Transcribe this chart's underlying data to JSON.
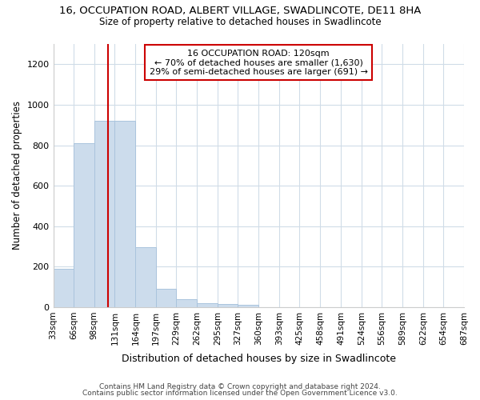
{
  "title": "16, OCCUPATION ROAD, ALBERT VILLAGE, SWADLINCOTE, DE11 8HA",
  "subtitle": "Size of property relative to detached houses in Swadlincote",
  "xlabel": "Distribution of detached houses by size in Swadlincote",
  "ylabel": "Number of detached properties",
  "bin_edges": [
    33,
    66,
    98,
    131,
    164,
    197,
    229,
    262,
    295,
    327,
    360,
    393,
    425,
    458,
    491,
    524,
    556,
    589,
    622,
    654,
    687
  ],
  "bar_heights": [
    190,
    810,
    920,
    920,
    295,
    90,
    38,
    20,
    15,
    10,
    0,
    0,
    0,
    0,
    0,
    0,
    0,
    0,
    0,
    0
  ],
  "bar_color": "#ccdcec",
  "bar_edgecolor": "#aac4dd",
  "vline_x": 120,
  "vline_color": "#cc0000",
  "ylim": [
    0,
    1300
  ],
  "yticks": [
    0,
    200,
    400,
    600,
    800,
    1000,
    1200
  ],
  "annotation_title": "16 OCCUPATION ROAD: 120sqm",
  "annotation_line1": "← 70% of detached houses are smaller (1,630)",
  "annotation_line2": "29% of semi-detached houses are larger (691) →",
  "footer_line1": "Contains HM Land Registry data © Crown copyright and database right 2024.",
  "footer_line2": "Contains public sector information licensed under the Open Government Licence v3.0.",
  "bg_color": "#ffffff",
  "plot_bg_color": "#ffffff",
  "grid_color": "#d0dce8"
}
